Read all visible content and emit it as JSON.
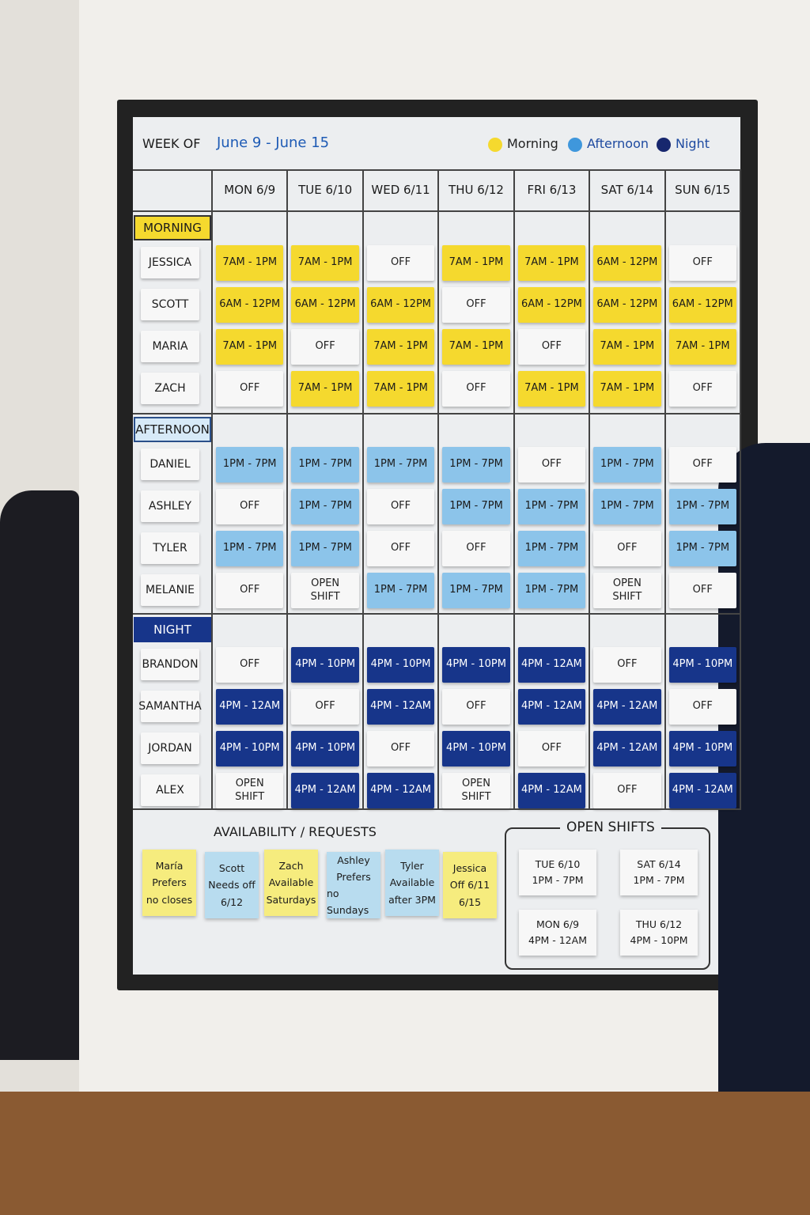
{
  "header": {
    "week_label": "WEEK OF",
    "week_dates": "June 9 - June 15",
    "legend": [
      "Morning",
      "Afternoon",
      "Night"
    ]
  },
  "days": [
    "MON 6/9",
    "TUE 6/10",
    "WED 6/11",
    "THU 6/12",
    "FRI 6/13",
    "SAT 6/14",
    "SUN 6/15"
  ],
  "sections": [
    {
      "name": "MORNING",
      "rows": [
        {
          "name": "JESSICA",
          "shifts": [
            "7AM - 1PM",
            "7AM - 1PM",
            "OFF",
            "7AM - 1PM",
            "7AM - 1PM",
            "6AM - 12PM",
            "OFF"
          ]
        },
        {
          "name": "SCOTT",
          "shifts": [
            "6AM - 12PM",
            "6AM - 12PM",
            "6AM - 12PM",
            "OFF",
            "6AM - 12PM",
            "6AM - 12PM",
            "6AM - 12PM"
          ]
        },
        {
          "name": "MARIA",
          "shifts": [
            "7AM - 1PM",
            "OFF",
            "7AM - 1PM",
            "7AM - 1PM",
            "OFF",
            "7AM - 1PM",
            "7AM - 1PM"
          ]
        },
        {
          "name": "ZACH",
          "shifts": [
            "OFF",
            "7AM - 1PM",
            "7AM - 1PM",
            "OFF",
            "7AM - 1PM",
            "7AM - 1PM",
            "OFF"
          ]
        }
      ]
    },
    {
      "name": "AFTERNOON",
      "rows": [
        {
          "name": "DANIEL",
          "shifts": [
            "1PM - 7PM",
            "1PM - 7PM",
            "1PM - 7PM",
            "1PM - 7PM",
            "OFF",
            "1PM - 7PM",
            "OFF"
          ]
        },
        {
          "name": "ASHLEY",
          "shifts": [
            "OFF",
            "1PM - 7PM",
            "OFF",
            "1PM - 7PM",
            "1PM - 7PM",
            "1PM - 7PM",
            "1PM - 7PM"
          ]
        },
        {
          "name": "TYLER",
          "shifts": [
            "1PM - 7PM",
            "1PM - 7PM",
            "OFF",
            "OFF",
            "1PM - 7PM",
            "OFF",
            "1PM - 7PM"
          ]
        },
        {
          "name": "MELANIE",
          "shifts": [
            "OFF",
            "OPEN SHIFT",
            "1PM - 7PM",
            "1PM - 7PM",
            "1PM - 7PM",
            "OPEN SHIFT",
            "OFF"
          ]
        }
      ]
    },
    {
      "name": "NIGHT",
      "rows": [
        {
          "name": "BRANDON",
          "shifts": [
            "OFF",
            "4PM - 10PM",
            "4PM - 10PM",
            "4PM - 10PM",
            "4PM - 12AM",
            "OFF",
            "4PM - 10PM"
          ]
        },
        {
          "name": "SAMANTHA",
          "shifts": [
            "4PM - 12AM",
            "OFF",
            "4PM - 12AM",
            "OFF",
            "4PM - 12AM",
            "4PM - 12AM",
            "OFF"
          ]
        },
        {
          "name": "JORDAN",
          "shifts": [
            "4PM - 10PM",
            "4PM - 10PM",
            "OFF",
            "4PM - 10PM",
            "OFF",
            "4PM - 12AM",
            "4PM - 10PM"
          ]
        },
        {
          "name": "ALEX",
          "shifts": [
            "OPEN SHIFT",
            "4PM - 12AM",
            "4PM - 12AM",
            "OPEN SHIFT",
            "4PM - 12AM",
            "OFF",
            "4PM - 12AM"
          ]
        }
      ]
    }
  ],
  "availability": {
    "title": "AVAILABILITY / REQUESTS",
    "notes": [
      [
        "María",
        "Prefers",
        "no closes"
      ],
      [
        "Scott",
        "Needs off",
        "6/12"
      ],
      [
        "Zach",
        "Available",
        "Saturdays"
      ],
      [
        "Ashley",
        "Prefers",
        "no Sundays"
      ],
      [
        "Tyler",
        "Available",
        "after 3PM"
      ],
      [
        "Jessica",
        "Off 6/11",
        "6/15"
      ]
    ]
  },
  "open_shifts": {
    "title": "OPEN SHIFTS",
    "items": [
      [
        "TUE 6/10",
        "1PM - 7PM"
      ],
      [
        "SAT 6/14",
        "1PM - 7PM"
      ],
      [
        "MON 6/9",
        "4PM - 12AM"
      ],
      [
        "THU 6/12",
        "4PM - 10PM"
      ]
    ]
  }
}
